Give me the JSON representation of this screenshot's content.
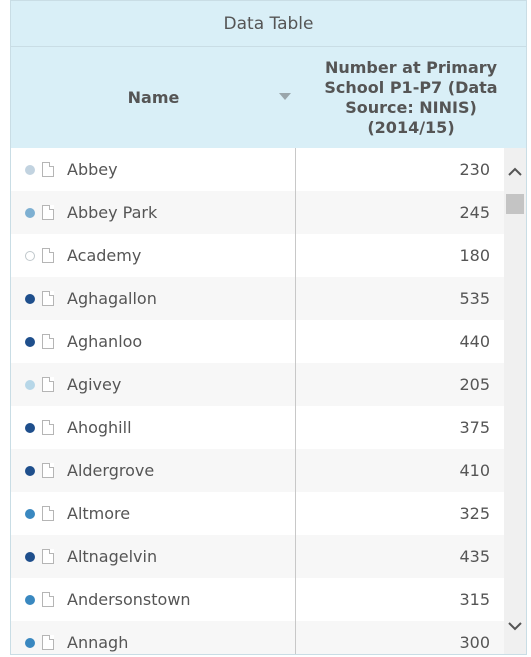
{
  "title": "Data Table",
  "columns": {
    "name": "Name",
    "value": "Number at Primary School P1-P7 (Data Source: NINIS) (2014/15)"
  },
  "icons": {
    "sort": "sort-descending-arrow-icon",
    "row_icon": "document-icon",
    "scroll_up": "chevron-up-icon",
    "scroll_down": "chevron-down-icon"
  },
  "rows": [
    {
      "name": "Abbey",
      "value": "230",
      "dot_color": "#c2d3e0"
    },
    {
      "name": "Abbey Park",
      "value": "245",
      "dot_color": "#7eb0d2"
    },
    {
      "name": "Academy",
      "value": "180",
      "dot_color": "#ffffff"
    },
    {
      "name": "Aghagallon",
      "value": "535",
      "dot_color": "#1f4f8c"
    },
    {
      "name": "Aghanloo",
      "value": "440",
      "dot_color": "#1f4f8c"
    },
    {
      "name": "Agivey",
      "value": "205",
      "dot_color": "#b7d7e8"
    },
    {
      "name": "Ahoghill",
      "value": "375",
      "dot_color": "#1f4f8c"
    },
    {
      "name": "Aldergrove",
      "value": "410",
      "dot_color": "#1f4f8c"
    },
    {
      "name": "Altmore",
      "value": "325",
      "dot_color": "#3a88c0"
    },
    {
      "name": "Altnagelvin",
      "value": "435",
      "dot_color": "#1f4f8c"
    },
    {
      "name": "Andersonstown",
      "value": "315",
      "dot_color": "#3a88c0"
    },
    {
      "name": "Annagh",
      "value": "300",
      "dot_color": "#3a88c0"
    }
  ]
}
